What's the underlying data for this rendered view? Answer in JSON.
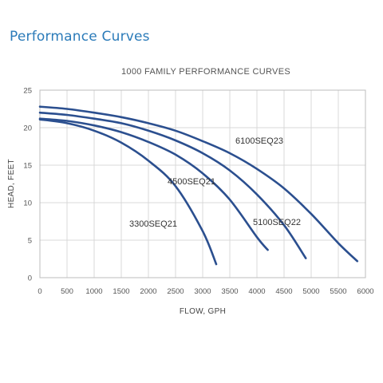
{
  "header": {
    "section_title": "Performance Curves"
  },
  "chart_data": {
    "type": "line",
    "title": "1000 FAMILY PERFORMANCE CURVES",
    "xlabel": "FLOW, GPH",
    "ylabel": "HEAD, FEET",
    "xlim": [
      0,
      6000
    ],
    "ylim": [
      0,
      25
    ],
    "x_ticks": [
      0,
      500,
      1000,
      1500,
      2000,
      2500,
      3000,
      3500,
      4000,
      4500,
      5000,
      5500,
      6000
    ],
    "y_ticks": [
      0,
      5,
      10,
      15,
      20,
      25
    ],
    "grid": true,
    "line_color": "#2b4f8f",
    "series": [
      {
        "name": "3300SEQ21",
        "points": [
          [
            0,
            21.1
          ],
          [
            500,
            20.6
          ],
          [
            1000,
            19.6
          ],
          [
            1500,
            18.0
          ],
          [
            2000,
            15.6
          ],
          [
            2500,
            12.2
          ],
          [
            3000,
            6.2
          ],
          [
            3250,
            1.8
          ]
        ]
      },
      {
        "name": "4500SEQ21",
        "points": [
          [
            0,
            21.2
          ],
          [
            500,
            20.9
          ],
          [
            1000,
            20.3
          ],
          [
            1500,
            19.4
          ],
          [
            2000,
            18.1
          ],
          [
            2500,
            16.4
          ],
          [
            3000,
            13.9
          ],
          [
            3500,
            10.4
          ],
          [
            4000,
            5.4
          ],
          [
            4200,
            3.7
          ]
        ]
      },
      {
        "name": "5100SEQ22",
        "points": [
          [
            0,
            22.0
          ],
          [
            500,
            21.7
          ],
          [
            1000,
            21.2
          ],
          [
            1500,
            20.6
          ],
          [
            2000,
            19.6
          ],
          [
            2500,
            18.3
          ],
          [
            3000,
            16.6
          ],
          [
            3500,
            14.3
          ],
          [
            4000,
            11.1
          ],
          [
            4500,
            7.0
          ],
          [
            4900,
            2.6
          ]
        ]
      },
      {
        "name": "6100SEQ23",
        "points": [
          [
            0,
            22.8
          ],
          [
            500,
            22.5
          ],
          [
            1000,
            22.0
          ],
          [
            1500,
            21.4
          ],
          [
            2000,
            20.6
          ],
          [
            2500,
            19.6
          ],
          [
            3000,
            18.2
          ],
          [
            3500,
            16.6
          ],
          [
            4000,
            14.5
          ],
          [
            4500,
            11.9
          ],
          [
            5000,
            8.5
          ],
          [
            5500,
            4.6
          ],
          [
            5850,
            2.2
          ]
        ]
      }
    ]
  }
}
